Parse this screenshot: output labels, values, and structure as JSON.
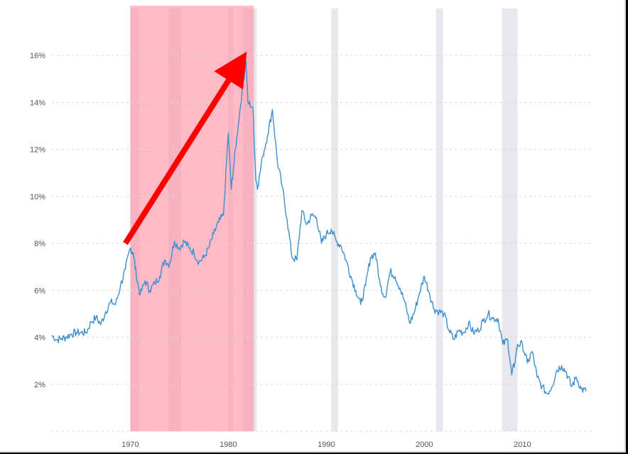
{
  "chart_data": {
    "type": "line",
    "title": "",
    "xlabel": "",
    "ylabel": "",
    "xlim": [
      1962,
      2017
    ],
    "ylim": [
      0,
      18
    ],
    "grid": true,
    "y_ticks": [
      2,
      4,
      6,
      8,
      10,
      12,
      14,
      16
    ],
    "y_tick_labels": [
      "2%",
      "4%",
      "6%",
      "8%",
      "10%",
      "12%",
      "14%",
      "16%"
    ],
    "x_ticks": [
      1970,
      1980,
      1990,
      2000,
      2010
    ],
    "x_tick_labels": [
      "1970",
      "1980",
      "1990",
      "2000",
      "2010"
    ],
    "series": [
      {
        "color": "#3d8fd1",
        "points": [
          [
            1962.0,
            4.08
          ],
          [
            1962.5,
            3.9
          ],
          [
            1963.0,
            3.95
          ],
          [
            1963.5,
            4.02
          ],
          [
            1964.0,
            4.15
          ],
          [
            1964.5,
            4.2
          ],
          [
            1965.0,
            4.2
          ],
          [
            1965.5,
            4.2
          ],
          [
            1966.0,
            4.65
          ],
          [
            1966.5,
            4.85
          ],
          [
            1967.0,
            4.55
          ],
          [
            1967.5,
            5.1
          ],
          [
            1968.0,
            5.5
          ],
          [
            1968.5,
            5.4
          ],
          [
            1969.0,
            6.2
          ],
          [
            1969.5,
            6.9
          ],
          [
            1970.0,
            7.8
          ],
          [
            1970.3,
            7.6
          ],
          [
            1970.6,
            6.7
          ],
          [
            1971.0,
            5.8
          ],
          [
            1971.5,
            6.4
          ],
          [
            1972.0,
            6.0
          ],
          [
            1972.5,
            6.3
          ],
          [
            1973.0,
            6.6
          ],
          [
            1973.5,
            7.3
          ],
          [
            1974.0,
            7.1
          ],
          [
            1974.5,
            8.1
          ],
          [
            1975.0,
            7.8
          ],
          [
            1975.5,
            8.1
          ],
          [
            1976.0,
            7.8
          ],
          [
            1976.5,
            7.6
          ],
          [
            1977.0,
            7.2
          ],
          [
            1977.5,
            7.4
          ],
          [
            1978.0,
            7.8
          ],
          [
            1978.5,
            8.4
          ],
          [
            1979.0,
            8.9
          ],
          [
            1979.5,
            9.2
          ],
          [
            1980.0,
            12.7
          ],
          [
            1980.3,
            10.3
          ],
          [
            1980.6,
            11.5
          ],
          [
            1981.0,
            13.0
          ],
          [
            1981.5,
            14.8
          ],
          [
            1981.8,
            15.8
          ],
          [
            1982.0,
            14.0
          ],
          [
            1982.5,
            13.8
          ],
          [
            1982.8,
            10.8
          ],
          [
            1983.0,
            10.4
          ],
          [
            1983.5,
            11.7
          ],
          [
            1984.0,
            12.6
          ],
          [
            1984.5,
            13.7
          ],
          [
            1985.0,
            11.5
          ],
          [
            1985.5,
            10.4
          ],
          [
            1986.0,
            9.0
          ],
          [
            1986.5,
            7.4
          ],
          [
            1987.0,
            7.3
          ],
          [
            1987.5,
            9.4
          ],
          [
            1988.0,
            8.8
          ],
          [
            1988.5,
            9.2
          ],
          [
            1989.0,
            9.1
          ],
          [
            1989.5,
            8.0
          ],
          [
            1990.0,
            8.4
          ],
          [
            1990.5,
            8.6
          ],
          [
            1991.0,
            8.1
          ],
          [
            1991.5,
            7.9
          ],
          [
            1992.0,
            7.3
          ],
          [
            1992.5,
            6.6
          ],
          [
            1993.0,
            6.0
          ],
          [
            1993.5,
            5.4
          ],
          [
            1994.0,
            6.2
          ],
          [
            1994.5,
            7.4
          ],
          [
            1995.0,
            7.6
          ],
          [
            1995.5,
            6.2
          ],
          [
            1996.0,
            5.7
          ],
          [
            1996.5,
            6.8
          ],
          [
            1997.0,
            6.6
          ],
          [
            1997.5,
            6.1
          ],
          [
            1998.0,
            5.5
          ],
          [
            1998.5,
            4.6
          ],
          [
            1999.0,
            5.1
          ],
          [
            1999.5,
            5.9
          ],
          [
            2000.0,
            6.6
          ],
          [
            2000.5,
            5.9
          ],
          [
            2001.0,
            5.2
          ],
          [
            2001.5,
            5.1
          ],
          [
            2002.0,
            5.0
          ],
          [
            2002.5,
            4.3
          ],
          [
            2003.0,
            3.9
          ],
          [
            2003.5,
            4.3
          ],
          [
            2004.0,
            4.2
          ],
          [
            2004.5,
            4.6
          ],
          [
            2005.0,
            4.2
          ],
          [
            2005.5,
            4.3
          ],
          [
            2006.0,
            4.7
          ],
          [
            2006.5,
            5.0
          ],
          [
            2007.0,
            4.8
          ],
          [
            2007.5,
            4.8
          ],
          [
            2008.0,
            3.7
          ],
          [
            2008.5,
            3.9
          ],
          [
            2008.9,
            2.4
          ],
          [
            2009.2,
            2.9
          ],
          [
            2009.5,
            3.7
          ],
          [
            2010.0,
            3.7
          ],
          [
            2010.5,
            2.9
          ],
          [
            2011.0,
            3.4
          ],
          [
            2011.5,
            2.3
          ],
          [
            2012.0,
            1.9
          ],
          [
            2012.5,
            1.6
          ],
          [
            2013.0,
            1.9
          ],
          [
            2013.5,
            2.6
          ],
          [
            2014.0,
            2.8
          ],
          [
            2014.5,
            2.5
          ],
          [
            2015.0,
            1.9
          ],
          [
            2015.5,
            2.3
          ],
          [
            2016.0,
            1.8
          ],
          [
            2016.5,
            1.7
          ]
        ]
      }
    ],
    "recession_bands": [
      [
        1970.0,
        1970.9
      ],
      [
        1973.9,
        1975.2
      ],
      [
        1980.0,
        1980.5
      ],
      [
        1981.5,
        1982.9
      ],
      [
        1990.5,
        1991.2
      ],
      [
        2001.2,
        2001.9
      ],
      [
        2007.9,
        2009.5
      ]
    ],
    "highlight_band": [
      1970.0,
      1982.6
    ],
    "highlight_color": "#ff8fa3",
    "arrow": {
      "from": [
        1969.5,
        8.0
      ],
      "to": [
        1981.7,
        16.0
      ],
      "color": "#ff0000"
    }
  }
}
